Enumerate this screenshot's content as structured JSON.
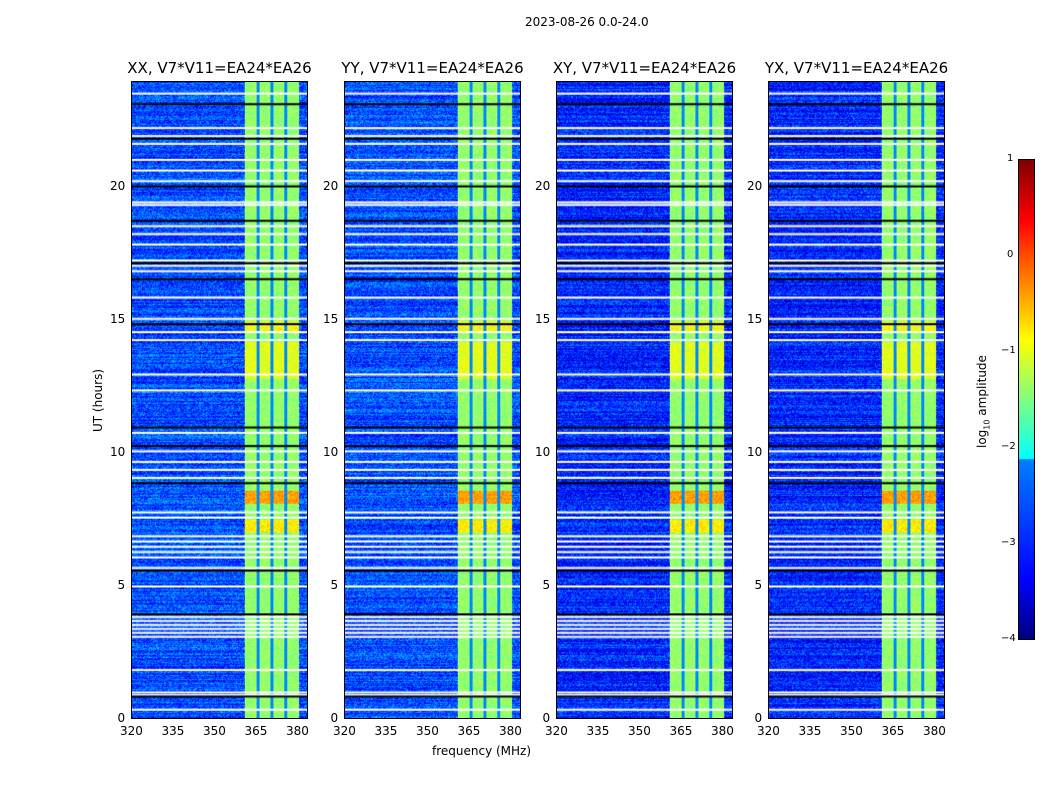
{
  "suptitle": "2023-08-26 0.0-24.0",
  "chart_data": {
    "type": "heatmap",
    "panels": [
      {
        "title": "XX, V7*V11=EA24*EA26"
      },
      {
        "title": "YY, V7*V11=EA24*EA26"
      },
      {
        "title": "XY, V7*V11=EA24*EA26"
      },
      {
        "title": "YX, V7*V11=EA24*EA26"
      }
    ],
    "xlabel": "frequency (MHz)",
    "ylabel": "UT (hours)",
    "xlim": [
      320,
      384
    ],
    "ylim": [
      0,
      24
    ],
    "xticks": [
      "320",
      "335",
      "350",
      "365",
      "380"
    ],
    "xtick_values": [
      320,
      335,
      350,
      365,
      380
    ],
    "yticks": [
      "0",
      "5",
      "10",
      "15",
      "20"
    ],
    "ytick_values": [
      0,
      5,
      10,
      15,
      20
    ],
    "colorbar": {
      "label_prefix": "log",
      "label_sub": "10",
      "label_suffix": " amplitude",
      "ticks": [
        "1",
        "0",
        "−1",
        "−2",
        "−3",
        "−4"
      ],
      "range": [
        -4,
        1
      ],
      "cmap": "jet"
    },
    "background_level": -3.0,
    "rfi_band_mhz": [
      361,
      381
    ],
    "rfi_level": -1.4,
    "rfi_gaps_mhz": [
      366,
      371,
      376
    ],
    "strong_rfi_times": [
      [
        8.1,
        8.6,
        -0.4
      ],
      [
        7.0,
        7.5,
        -0.8
      ],
      [
        12.8,
        14.2,
        -1.0
      ],
      [
        14.6,
        15.0,
        -0.9
      ]
    ],
    "flagged_times": [
      0.35,
      0.9,
      1.0,
      1.85,
      3.1,
      3.25,
      3.4,
      3.55,
      3.7,
      3.85,
      5.0,
      5.7,
      6.1,
      6.3,
      6.5,
      6.7,
      6.9,
      7.6,
      7.8,
      9.1,
      9.4,
      9.7,
      10.1,
      10.8,
      12.4,
      13.0,
      14.3,
      14.6,
      15.1,
      15.9,
      16.9,
      17.1,
      17.3,
      17.9,
      18.3,
      18.6,
      19.4,
      19.5,
      20.3,
      20.7,
      21.1,
      21.7,
      22.0,
      22.3,
      23.6
    ],
    "dark_times": [
      0.85,
      3.95,
      5.6,
      8.9,
      10.3,
      11.0,
      14.9,
      16.6,
      17.2,
      18.8,
      20.1,
      21.9,
      23.2
    ]
  }
}
